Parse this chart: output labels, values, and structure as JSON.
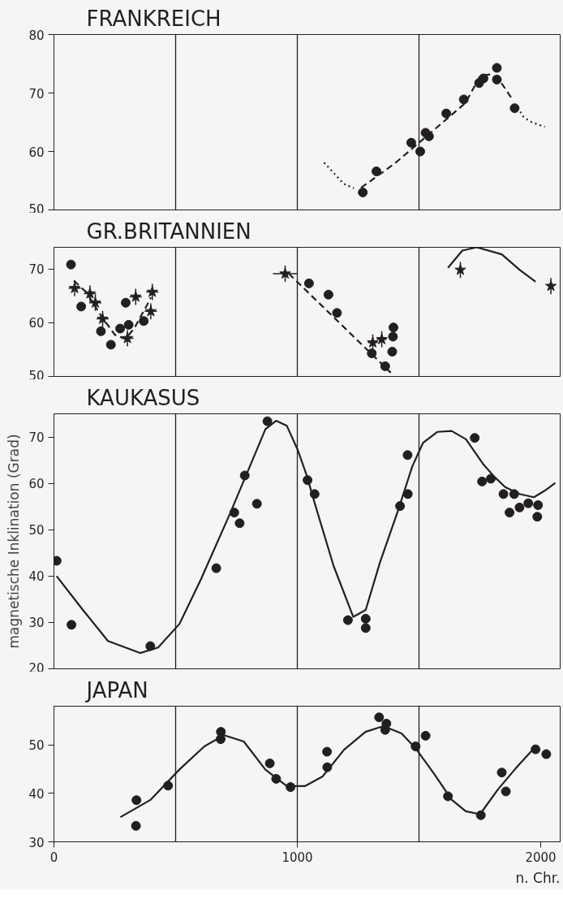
{
  "chart_data": [
    {
      "type": "scatter",
      "title": "FRANKREICH",
      "xlim": [
        0,
        2080
      ],
      "ylim": [
        50,
        80
      ],
      "xticks": [
        0,
        1000,
        2000
      ],
      "yticks": [
        50,
        60,
        70,
        80
      ],
      "tick_labels": "y",
      "ref_lines": [
        {
          "axis": "x",
          "value": 500
        },
        {
          "axis": "x",
          "value": 1000
        },
        {
          "axis": "x",
          "value": 1500
        }
      ],
      "series": [
        {
          "marker": "circle",
          "color": "#231f20",
          "x": [
            1269,
            1325,
            1468,
            1505,
            1527,
            1541,
            1612,
            1684,
            1747,
            1765,
            1820,
            1820,
            1893
          ],
          "values": [
            53.0,
            56.6,
            61.5,
            60.0,
            63.2,
            62.6,
            66.5,
            68.9,
            71.7,
            72.5,
            74.3,
            72.3,
            67.4
          ]
        },
        {
          "type": "line",
          "line_style": "dotted",
          "color": "#231f20",
          "x": [
            1110,
            1190,
            1232
          ],
          "values": [
            58.1,
            54.5,
            53.7
          ]
        },
        {
          "type": "line",
          "line_style": "dashed",
          "color": "#231f20",
          "x": [
            1262,
            1399,
            1545,
            1691,
            1751,
            1794,
            1837,
            1884
          ],
          "values": [
            53.8,
            57.9,
            63.1,
            68.3,
            72.9,
            73.2,
            71.8,
            68.9
          ]
        },
        {
          "type": "line",
          "line_style": "dotted",
          "color": "#231f20",
          "x": [
            1905,
            1930,
            1957,
            2017
          ],
          "values": [
            67.5,
            65.9,
            65.1,
            64.2
          ]
        }
      ]
    },
    {
      "type": "scatter",
      "title": "GR.BRITANNIEN",
      "xlim": [
        0,
        2080
      ],
      "ylim": [
        50,
        74
      ],
      "xticks": [
        0,
        1000,
        2000
      ],
      "yticks": [
        50,
        60,
        70
      ],
      "tick_labels": "y",
      "ref_lines": [
        {
          "axis": "x",
          "value": 500
        },
        {
          "axis": "x",
          "value": 1000
        },
        {
          "axis": "x",
          "value": 1500
        }
      ],
      "series": [
        {
          "marker": "circle",
          "color": "#231f20",
          "x": [
            70,
            112,
            193,
            234,
            272,
            295,
            307,
            369,
            1048,
            1128,
            1163,
            1306,
            1361,
            1390,
            1393,
            1395
          ],
          "values": [
            70.8,
            63.0,
            58.4,
            55.9,
            58.9,
            63.7,
            59.6,
            60.3,
            67.3,
            65.2,
            61.8,
            54.3,
            51.9,
            54.6,
            57.4,
            59.1
          ]
        },
        {
          "marker": "star",
          "color": "#231f20",
          "x": [
            85,
            148,
            170,
            200,
            302,
            336,
            404,
            398,
            950,
            1310,
            1347,
            1670,
            2042
          ],
          "values": [
            66.4,
            65.4,
            63.7,
            60.7,
            57.1,
            64.8,
            65.7,
            62.1,
            69.1,
            56.3,
            56.9,
            69.8,
            66.8
          ],
          "errors": [
            1.5,
            1.5,
            1.5,
            1.5,
            1.5,
            1.5,
            1.5,
            1.5,
            1.5,
            1.5,
            1.5,
            1.5,
            1.5
          ],
          "xerrors": [
            25,
            25,
            25,
            25,
            25,
            25,
            25,
            25,
            50,
            20,
            20,
            null,
            null
          ]
        },
        {
          "type": "line",
          "line_style": "dashed",
          "color": "#231f20",
          "x": [
            82,
            134,
            193,
            251,
            295,
            332,
            384,
            398
          ],
          "values": [
            67.8,
            65.6,
            61.3,
            57.7,
            57.0,
            59.1,
            63.4,
            64.7
          ]
        },
        {
          "type": "line",
          "line_style": "dashed",
          "color": "#231f20",
          "x": [
            965,
            1384
          ],
          "values": [
            69.1,
            50.7
          ]
        },
        {
          "type": "line",
          "line_style": "solid",
          "color": "#231f20",
          "x": [
            1619,
            1678,
            1737,
            1840,
            1914,
            1979
          ],
          "values": [
            70.2,
            73.4,
            74.0,
            72.7,
            69.8,
            67.6
          ]
        }
      ]
    },
    {
      "type": "scatter",
      "title": "KAUKASUS",
      "ylabel": "magnetische Inklination (Grad)",
      "xlim": [
        0,
        2080
      ],
      "ylim": [
        20,
        75
      ],
      "xticks": [
        0,
        1000,
        2000
      ],
      "yticks": [
        20,
        30,
        40,
        50,
        60,
        70
      ],
      "tick_labels": "y",
      "ref_lines": [
        {
          "axis": "x",
          "value": 500
        },
        {
          "axis": "x",
          "value": 1000
        },
        {
          "axis": "x",
          "value": 1500
        }
      ],
      "series": [
        {
          "marker": "circle",
          "color": "#231f20",
          "x": [
            11,
            72,
            396,
            667,
            741,
            763,
            784,
            834,
            877,
            1042,
            1071,
            1208,
            1281,
            1281,
            1422,
            1453,
            1454,
            1729,
            1759,
            1795,
            1847,
            1872,
            1891,
            1913,
            1949,
            1986,
            1989
          ],
          "values": [
            43.3,
            29.5,
            24.9,
            41.7,
            53.7,
            51.4,
            61.7,
            55.6,
            73.4,
            60.7,
            57.7,
            30.5,
            30.8,
            28.8,
            55.1,
            66.1,
            57.7,
            69.8,
            60.4,
            61.0,
            57.7,
            53.7,
            57.7,
            54.8,
            55.7,
            52.8,
            55.3
          ]
        },
        {
          "type": "line",
          "line_style": "solid",
          "color": "#231f20",
          "x": [
            11,
            119,
            222,
            354,
            428,
            516,
            604,
            722,
            810,
            869,
            913,
            957,
            1001,
            1038,
            1075,
            1149,
            1230,
            1281,
            1340,
            1413,
            1472,
            1516,
            1575,
            1634,
            1693,
            1766,
            1810,
            1854,
            1913,
            1972,
            2016,
            2060
          ],
          "values": [
            40.0,
            32.7,
            26.0,
            23.4,
            24.6,
            29.7,
            39.3,
            53.3,
            64.3,
            71.7,
            73.5,
            72.4,
            67.3,
            61.8,
            55.1,
            42.2,
            31.2,
            32.7,
            43.0,
            54.0,
            63.6,
            68.7,
            71.1,
            71.3,
            69.5,
            64.0,
            61.4,
            59.2,
            57.7,
            57.0,
            58.4,
            60.1
          ]
        }
      ]
    },
    {
      "type": "scatter",
      "title": "JAPAN",
      "xlabel": "n. Chr.",
      "xlim": [
        0,
        2080
      ],
      "ylim": [
        30,
        58
      ],
      "xticks": [
        0,
        1000,
        2000
      ],
      "yticks": [
        30,
        40,
        50
      ],
      "ref_lines": [
        {
          "axis": "x",
          "value": 500
        },
        {
          "axis": "x",
          "value": 1000
        },
        {
          "axis": "x",
          "value": 1500
        }
      ],
      "series": [
        {
          "marker": "circle",
          "color": "#231f20",
          "x": [
            339,
            337,
            469,
            686,
            685,
            887,
            913,
            972,
            1122,
            1123,
            1336,
            1366,
            1361,
            1486,
            1527,
            1619,
            1754,
            1840,
            1857,
            1979,
            2023
          ],
          "values": [
            38.6,
            33.3,
            41.6,
            52.7,
            51.2,
            46.2,
            43.0,
            41.3,
            48.6,
            45.4,
            55.7,
            54.4,
            53.1,
            49.7,
            51.9,
            39.4,
            35.5,
            44.3,
            40.4,
            49.1,
            48.1
          ]
        },
        {
          "type": "line",
          "line_style": "solid",
          "color": "#231f20",
          "x": [
            273,
            398,
            515,
            618,
            699,
            780,
            869,
            957,
            1031,
            1104,
            1192,
            1280,
            1354,
            1428,
            1486,
            1560,
            1634,
            1692,
            1751,
            1824,
            1898,
            1972
          ],
          "values": [
            35.1,
            38.7,
            44.9,
            49.7,
            52.0,
            50.7,
            44.9,
            41.5,
            41.5,
            43.5,
            49.0,
            52.7,
            53.9,
            52.4,
            49.3,
            44.2,
            38.7,
            36.3,
            35.7,
            40.8,
            45.2,
            49.3
          ]
        }
      ]
    }
  ]
}
